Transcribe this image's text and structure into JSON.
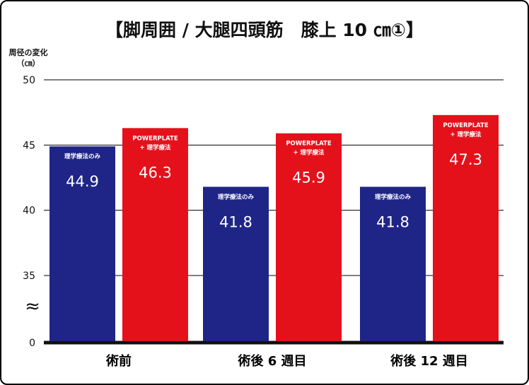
{
  "chart_data": {
    "type": "bar",
    "title": "【脚周囲 / 大腿四頭筋　膝上 10 ㎝①】",
    "ylabel": "周径の変化",
    "yunit": "（㎝）",
    "ylim": [
      30,
      50
    ],
    "yticks": [
      "50",
      "45",
      "40",
      "35"
    ],
    "axis_break_label": "0",
    "axis_break_symbol": "≈",
    "grid": true,
    "categories": [
      "術前",
      "術後 6 週目",
      "術後 12 週目"
    ],
    "series": [
      {
        "label_lines": [
          "理学療法のみ"
        ],
        "color": "#1f2587",
        "values": [
          44.9,
          41.8,
          41.8
        ],
        "value_labels": [
          "44.9",
          "41.8",
          "41.8"
        ]
      },
      {
        "label_lines": [
          "POWERPLATE",
          "+ 理学療法"
        ],
        "color": "#e4111b",
        "values": [
          46.3,
          45.9,
          47.3
        ],
        "value_labels": [
          "46.3",
          "45.9",
          "47.3"
        ]
      }
    ]
  }
}
